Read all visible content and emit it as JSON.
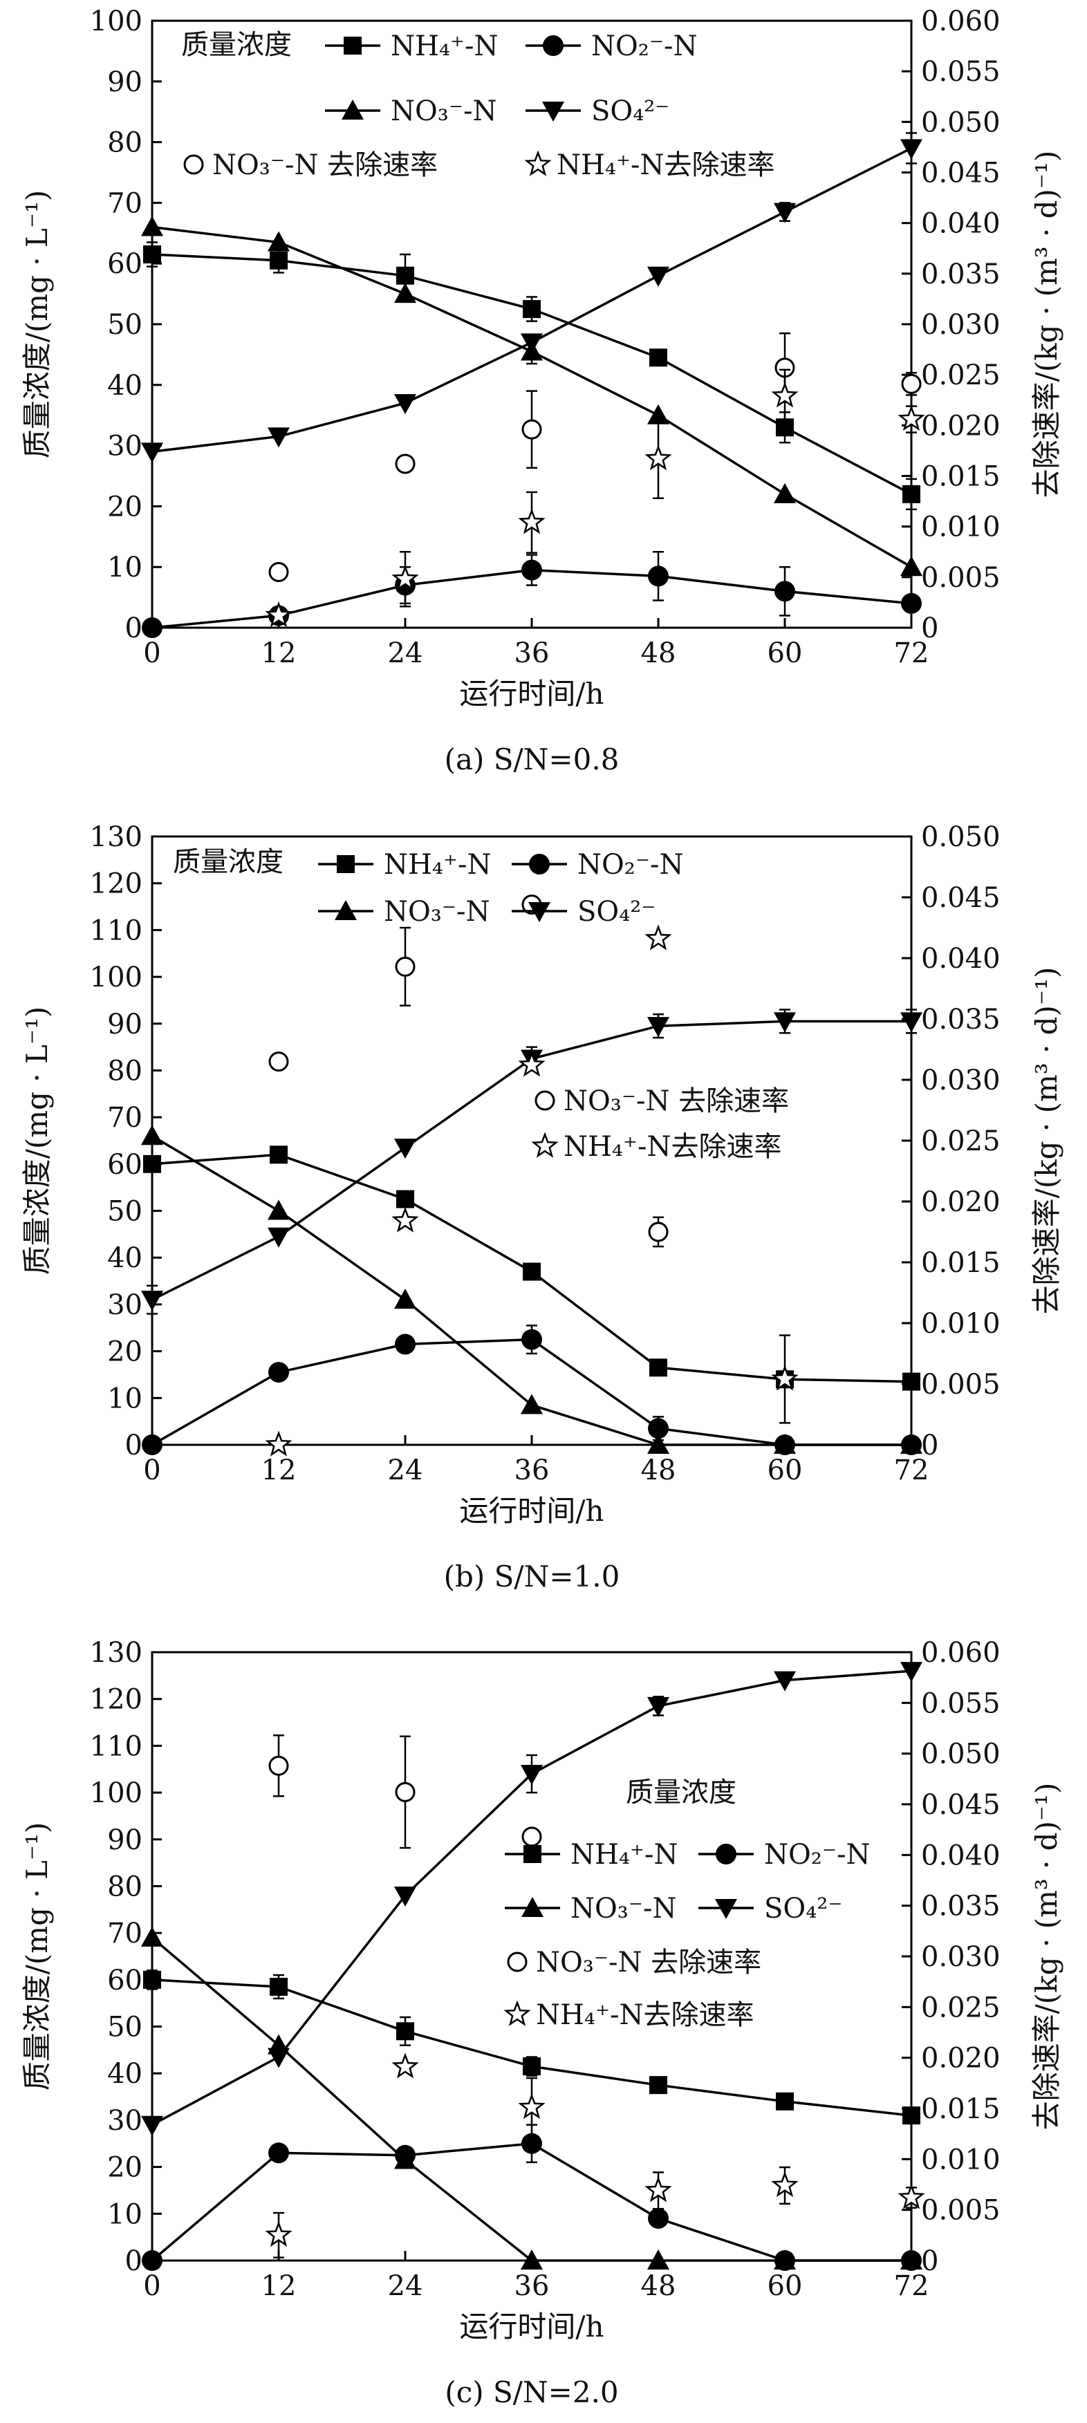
{
  "legend": {
    "title": "质量浓度",
    "nh4": "NH₄⁺-N",
    "no2": "NO₂⁻-N",
    "no3": "NO₃⁻-N",
    "so4": "SO₄²⁻",
    "no3_rate": "NO₃⁻-N 去除速率",
    "nh4_rate": "NH₄⁺-N去除速率"
  },
  "chart_data": [
    {
      "type": "line",
      "caption": "(a) S/N=0.8",
      "xlabel": "运行时间/h",
      "ylabel": "质量浓度/(mg · L⁻¹)",
      "y2label": "去除速率/(kg · (m³ · d)⁻¹)",
      "x": [
        0,
        12,
        24,
        36,
        48,
        60,
        72
      ],
      "xticks": [
        "0",
        "12",
        "24",
        "36",
        "48",
        "60",
        "72"
      ],
      "ylim": [
        0,
        100
      ],
      "yticks": [
        0,
        10,
        20,
        30,
        40,
        50,
        60,
        70,
        80,
        90,
        100
      ],
      "y2lim": [
        0,
        0.06
      ],
      "y2ticks": [
        "0",
        "0.005",
        "0.010",
        "0.015",
        "0.020",
        "0.025",
        "0.030",
        "0.035",
        "0.040",
        "0.045",
        "0.050",
        "0.055",
        "0.060"
      ],
      "legend_layout": "top",
      "series": [
        {
          "key": "nh4",
          "marker": "square",
          "values": [
            61.5,
            60.5,
            58,
            52.5,
            44.5,
            33,
            22
          ],
          "err": [
            2,
            2,
            3.5,
            2,
            1,
            2.5,
            2.5
          ]
        },
        {
          "key": "no2",
          "marker": "circle",
          "values": [
            0,
            2,
            7,
            9.5,
            8.5,
            6,
            4
          ],
          "err": [
            0,
            1,
            3,
            2.5,
            4,
            4,
            1
          ]
        },
        {
          "key": "no3",
          "marker": "triangle",
          "values": [
            66,
            63.5,
            55,
            45.5,
            35,
            22,
            10
          ],
          "err": [
            0,
            0,
            0,
            2,
            0,
            0,
            0
          ]
        },
        {
          "key": "so4",
          "marker": "tri-down",
          "values": [
            29,
            31.5,
            37,
            47,
            58,
            68.5,
            79
          ],
          "err": [
            0,
            0,
            0,
            0,
            0,
            1.5,
            2.5
          ]
        }
      ],
      "rates": [
        {
          "key": "no3_rate",
          "marker": "open-circle",
          "x": [
            12,
            24,
            36,
            60,
            72
          ],
          "values": [
            0.0055,
            0.0162,
            0.0196,
            0.0257,
            0.0241
          ],
          "err": [
            0.0005,
            0.0007,
            0.0038,
            0.0034,
            0.0011
          ]
        },
        {
          "key": "nh4_rate",
          "marker": "star",
          "x": [
            12,
            24,
            36,
            48,
            60,
            72
          ],
          "values": [
            0.0012,
            0.0048,
            0.0104,
            0.0167,
            0.0229,
            0.0206
          ],
          "err": [
            0,
            0.0027,
            0.003,
            0.0039,
            0.0026,
            0.0013
          ]
        }
      ]
    },
    {
      "type": "line",
      "caption": "(b) S/N=1.0",
      "xlabel": "运行时间/h",
      "ylabel": "质量浓度/(mg · L⁻¹)",
      "y2label": "去除速率/(kg · (m³ · d)⁻¹)",
      "x": [
        0,
        12,
        24,
        36,
        48,
        60,
        72
      ],
      "xticks": [
        "0",
        "12",
        "24",
        "36",
        "48",
        "60",
        "72"
      ],
      "ylim": [
        0,
        130
      ],
      "yticks": [
        0,
        10,
        20,
        30,
        40,
        50,
        60,
        70,
        80,
        90,
        100,
        110,
        120,
        130
      ],
      "y2lim": [
        0,
        0.05
      ],
      "y2ticks": [
        "0",
        "0.005",
        "0.010",
        "0.015",
        "0.020",
        "0.025",
        "0.030",
        "0.035",
        "0.040",
        "0.045",
        "0.050"
      ],
      "legend_layout": "split",
      "series": [
        {
          "key": "nh4",
          "marker": "square",
          "values": [
            60,
            62,
            52.5,
            37,
            16.5,
            14,
            13.5
          ],
          "err": [
            0,
            0,
            0,
            0,
            0,
            0,
            0
          ]
        },
        {
          "key": "no2",
          "marker": "circle",
          "values": [
            0,
            15.5,
            21.5,
            22.5,
            3.5,
            0,
            0
          ],
          "err": [
            0,
            0,
            0,
            3,
            2.5,
            0,
            0
          ]
        },
        {
          "key": "no3",
          "marker": "triangle",
          "values": [
            66,
            50,
            31,
            8.5,
            0,
            0,
            0
          ],
          "err": [
            0,
            0,
            0,
            0,
            0,
            0,
            0
          ]
        },
        {
          "key": "so4",
          "marker": "tri-down",
          "values": [
            31,
            44.5,
            63.5,
            82.5,
            89.5,
            90.5,
            90.5
          ],
          "err": [
            3,
            0,
            0,
            2.5,
            2.5,
            2.5,
            2.5
          ]
        }
      ],
      "rates": [
        {
          "key": "no3_rate",
          "marker": "open-circle",
          "x": [
            12,
            24,
            36,
            48
          ],
          "values": [
            0.0315,
            0.0393,
            0.0444,
            0.0175
          ],
          "err": [
            0.0006,
            0.0032,
            0.0003,
            0.0012
          ]
        },
        {
          "key": "nh4_rate",
          "marker": "star",
          "x": [
            12,
            24,
            36,
            48,
            60
          ],
          "values": [
            0,
            0.0184,
            0.0312,
            0.0416,
            0.0054
          ],
          "err": [
            0,
            0,
            0,
            0.0003,
            0.0036
          ]
        }
      ]
    },
    {
      "type": "line",
      "caption": "(c) S/N=2.0",
      "xlabel": "运行时间/h",
      "ylabel": "质量浓度/(mg · L⁻¹)",
      "y2label": "去除速率/(kg · (m³ · d)⁻¹)",
      "x": [
        0,
        12,
        24,
        36,
        48,
        60,
        72
      ],
      "xticks": [
        "0",
        "12",
        "24",
        "36",
        "48",
        "60",
        "72"
      ],
      "ylim": [
        0,
        130
      ],
      "yticks": [
        0,
        10,
        20,
        30,
        40,
        50,
        60,
        70,
        80,
        90,
        100,
        110,
        120,
        130
      ],
      "y2lim": [
        0,
        0.06
      ],
      "y2ticks": [
        "0",
        "0.005",
        "0.010",
        "0.015",
        "0.020",
        "0.025",
        "0.030",
        "0.035",
        "0.040",
        "0.045",
        "0.050",
        "0.055",
        "0.060"
      ],
      "legend_layout": "right",
      "series": [
        {
          "key": "nh4",
          "marker": "square",
          "values": [
            60,
            58.5,
            49,
            41.5,
            37.5,
            34,
            31
          ],
          "err": [
            2,
            2.5,
            3,
            2,
            0,
            1.5,
            0
          ]
        },
        {
          "key": "no2",
          "marker": "circle",
          "values": [
            0,
            23,
            22.5,
            25,
            9,
            0,
            0
          ],
          "err": [
            0,
            1.5,
            0,
            4,
            0,
            0,
            0
          ]
        },
        {
          "key": "no3",
          "marker": "triangle",
          "values": [
            69,
            46,
            21.5,
            0,
            0,
            0,
            0
          ],
          "err": [
            0,
            0,
            0,
            0,
            0,
            0,
            0
          ]
        },
        {
          "key": "so4",
          "marker": "tri-down",
          "values": [
            29,
            43.5,
            78,
            104,
            118.5,
            124,
            126
          ],
          "err": [
            0,
            0,
            0,
            4,
            2,
            0,
            0
          ]
        }
      ],
      "rates": [
        {
          "key": "no3_rate",
          "marker": "open-circle",
          "x": [
            12,
            24,
            36
          ],
          "values": [
            0.0488,
            0.0462,
            0.0418
          ],
          "err": [
            0.003,
            0.0055,
            0.0004
          ]
        },
        {
          "key": "nh4_rate",
          "marker": "star",
          "x": [
            12,
            24,
            36,
            48,
            60,
            72
          ],
          "values": [
            0.0025,
            0.0191,
            0.0151,
            0.0069,
            0.0074,
            0.0062
          ],
          "err": [
            0.0022,
            0,
            0.0029,
            0.0018,
            0.0018,
            0.001
          ]
        }
      ]
    }
  ]
}
